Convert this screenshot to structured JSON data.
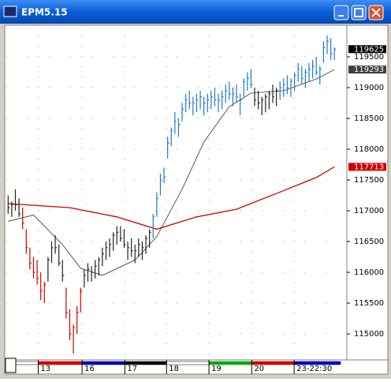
{
  "window_title": "EPM5.15",
  "chart_data": {
    "type": "ohlc",
    "xlim": [
      -0.5,
      91.7
    ],
    "ylim": [
      114590,
      120013
    ],
    "yticks": [
      115000,
      115500,
      116000,
      116500,
      117000,
      117500,
      118000,
      118500,
      119000,
      119500
    ],
    "xticks": [
      {
        "value": 8.3,
        "label": "13"
      },
      {
        "value": 20.4,
        "label": "16"
      },
      {
        "value": 32.2,
        "label": "17"
      },
      {
        "value": 43.7,
        "label": "18"
      },
      {
        "value": 55.4,
        "label": "19"
      },
      {
        "value": 67.2,
        "label": "20"
      },
      {
        "value": 78.9,
        "label": "23-22:30"
      }
    ],
    "strip_colors": [
      "#ffffff",
      "#cc0000",
      "#0000aa",
      "#000000",
      "#ffffff",
      "#00aa00",
      "#cc0000",
      "#0000aa",
      "#000000"
    ],
    "grid": true,
    "series": [
      {
        "color": "#cc0000",
        "x": [
          4,
          5,
          6,
          7,
          8,
          9,
          10,
          16,
          17,
          18,
          19,
          20
        ],
        "high": [
          117050,
          116700,
          116400,
          116250,
          116200,
          116000,
          115850,
          115750,
          115400,
          115150,
          115450,
          115750
        ],
        "low": [
          116700,
          116300,
          116050,
          115900,
          115800,
          115550,
          115500,
          115250,
          114900,
          114680,
          115000,
          115350
        ],
        "close": [
          116800,
          116400,
          116150,
          116000,
          115900,
          115700,
          115800,
          115350,
          115000,
          115100,
          115350,
          115700
        ]
      },
      {
        "color": "#222222",
        "x": [
          0,
          1,
          2,
          3,
          11,
          12,
          13,
          14,
          15,
          21,
          22,
          23,
          24,
          25,
          26,
          27,
          28,
          29,
          30,
          31,
          32,
          33,
          34,
          35,
          36,
          37,
          38,
          39,
          68,
          69,
          70,
          71,
          72,
          73,
          74
        ],
        "high": [
          117250,
          117150,
          117350,
          117200,
          116250,
          116500,
          116600,
          116450,
          116200,
          116050,
          116150,
          116100,
          116200,
          116250,
          116400,
          116500,
          116550,
          116650,
          116750,
          116750,
          116700,
          116500,
          116550,
          116450,
          116550,
          116500,
          116600,
          116700,
          119000,
          118950,
          118850,
          118900,
          118950,
          119050,
          119000
        ],
        "low": [
          116950,
          116900,
          117000,
          116900,
          115850,
          116150,
          116300,
          116100,
          115850,
          115750,
          115850,
          115850,
          115900,
          115950,
          116100,
          116200,
          116250,
          116350,
          116450,
          116500,
          116400,
          116200,
          116250,
          116150,
          116250,
          116200,
          116300,
          116400,
          118700,
          118650,
          118550,
          118600,
          118650,
          118750,
          118700
        ],
        "close": [
          117050,
          117100,
          117100,
          116950,
          116200,
          116400,
          116400,
          116150,
          115950,
          115950,
          116050,
          116000,
          116100,
          116200,
          116300,
          116400,
          116450,
          116600,
          116650,
          116550,
          116450,
          116400,
          116350,
          116350,
          116450,
          116400,
          116550,
          116650,
          118800,
          118750,
          118800,
          118850,
          118900,
          118850,
          118950
        ]
      },
      {
        "color": "#1e78d2",
        "x": [
          40,
          41,
          42,
          43,
          44,
          45,
          46,
          47,
          48,
          49,
          50,
          51,
          52,
          53,
          54,
          55,
          56,
          57,
          58,
          59,
          60,
          61,
          62,
          63,
          64,
          65,
          66,
          67,
          75,
          76,
          77,
          78,
          79,
          80,
          81,
          82,
          83,
          84,
          85,
          86,
          87,
          88,
          89,
          90
        ],
        "high": [
          116950,
          117300,
          117600,
          117700,
          118200,
          118350,
          118600,
          118500,
          118750,
          118900,
          118950,
          118850,
          118900,
          118950,
          118850,
          118900,
          118950,
          119000,
          118900,
          118950,
          119050,
          119100,
          119000,
          119050,
          118900,
          119150,
          119250,
          119300,
          119100,
          119150,
          119200,
          119150,
          119250,
          119400,
          119350,
          119300,
          119400,
          119450,
          119500,
          119350,
          119750,
          119850,
          119800,
          119650
        ],
        "low": [
          116550,
          116900,
          117250,
          117450,
          117850,
          118050,
          118250,
          118200,
          118450,
          118600,
          118650,
          118550,
          118600,
          118650,
          118550,
          118600,
          118650,
          118700,
          118600,
          118650,
          118750,
          118800,
          118700,
          118750,
          118550,
          118850,
          118950,
          119000,
          118800,
          118850,
          118900,
          118850,
          118950,
          119100,
          119050,
          119000,
          119100,
          119150,
          119200,
          119050,
          119400,
          119550,
          119450,
          119450
        ],
        "close": [
          116900,
          117200,
          117500,
          117550,
          118100,
          118300,
          118450,
          118400,
          118650,
          118800,
          118750,
          118750,
          118800,
          118850,
          118750,
          118800,
          118850,
          118800,
          118800,
          118850,
          118950,
          118900,
          118900,
          118850,
          118800,
          119100,
          119150,
          119050,
          119000,
          119050,
          119000,
          119100,
          119200,
          119300,
          119150,
          119250,
          119300,
          119350,
          119250,
          119300,
          119650,
          119750,
          119550,
          119625
        ]
      }
    ],
    "lines": [
      {
        "color": "#cc0000",
        "x": [
          0,
          17,
          30,
          41,
          52,
          63,
          74,
          85,
          90
        ],
        "values": [
          117115,
          117050,
          116900,
          116700,
          116900,
          117025,
          117280,
          117540,
          117713
        ]
      },
      {
        "color": "#333333",
        "x": [
          0,
          7,
          15,
          20,
          26,
          35,
          41,
          48,
          54,
          61,
          67,
          76,
          85,
          90
        ],
        "values": [
          116830,
          116930,
          116450,
          116065,
          115950,
          116200,
          116580,
          117350,
          118115,
          118690,
          118910,
          118950,
          119140,
          119293
        ]
      }
    ],
    "price_tags": [
      119625,
      119293,
      117713
    ],
    "price_tag_colors": [
      "#000000",
      "#404040",
      "#cc0000"
    ]
  }
}
